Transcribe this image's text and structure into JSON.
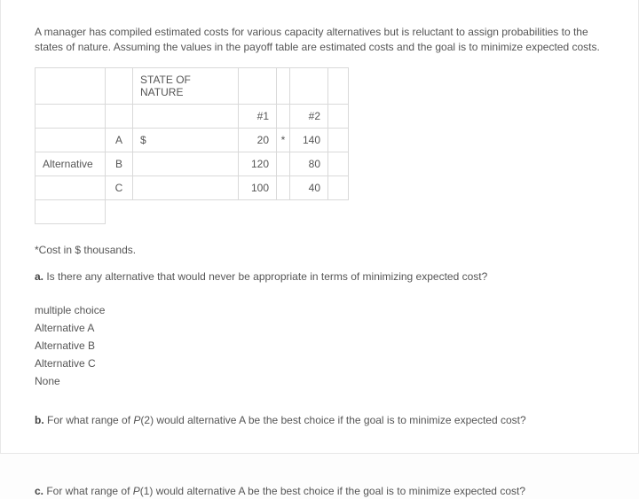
{
  "intro": "A manager has compiled estimated costs for various capacity alternatives but is reluctant to assign probabilities to the states of nature. Assuming the values in the payoff table are estimated costs and the goal is to minimize expected costs.",
  "table": {
    "state_header": "STATE OF NATURE",
    "col1": "#1",
    "col2": "#2",
    "dollar": "$",
    "star": "*",
    "row_header": "Alternative",
    "rows": {
      "A": {
        "label": "A",
        "c1": "20",
        "c2": "140"
      },
      "B": {
        "label": "B",
        "c1": "120",
        "c2": "80"
      },
      "C": {
        "label": "C",
        "c1": "100",
        "c2": "40"
      }
    }
  },
  "footnote": "*Cost in $ thousands.",
  "qa": {
    "label": "a.",
    "text": " Is there any alternative that would never be appropriate in terms of minimizing expected cost?"
  },
  "mc": {
    "heading": "multiple choice",
    "opt1": "Alternative A",
    "opt2": "Alternative B",
    "opt3": "Alternative C",
    "opt4": "None"
  },
  "qb": {
    "label": "b.",
    "text_pre": " For what range of ",
    "p": "P",
    "arg": "(2)",
    "text_post": " would alternative A be the best choice if the goal is to minimize expected cost?"
  },
  "qc": {
    "label": "c.",
    "text_pre": " For what range of ",
    "p": "P",
    "arg": "(1)",
    "text_post": " would alternative A be the best choice if the goal is to minimize expected cost?"
  }
}
